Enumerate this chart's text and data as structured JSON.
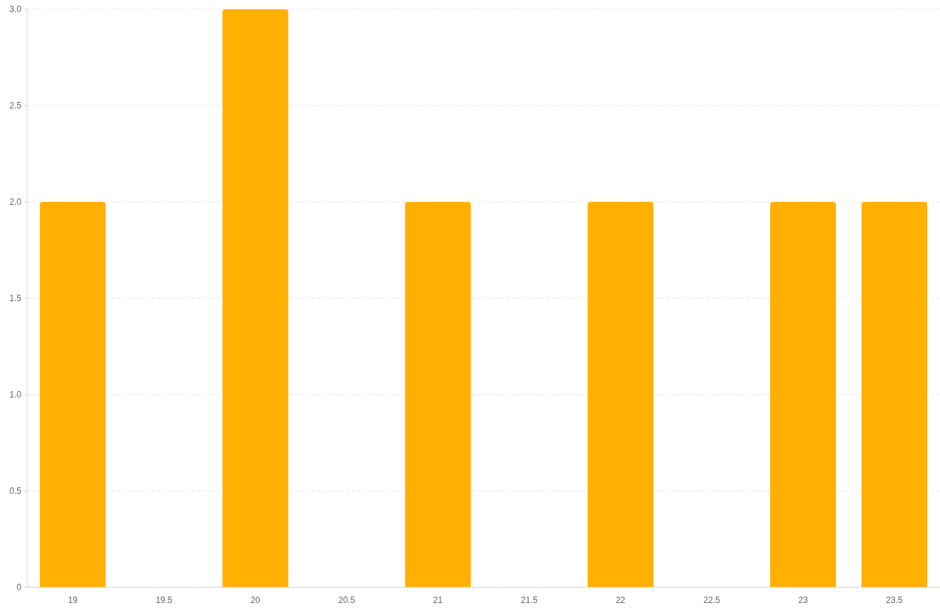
{
  "chart_data": {
    "type": "bar",
    "categories": [
      "19",
      "19.5",
      "20",
      "20.5",
      "21",
      "21.5",
      "22",
      "22.5",
      "23",
      "23.5"
    ],
    "values": [
      2,
      null,
      3,
      null,
      2,
      null,
      2,
      null,
      2,
      2
    ],
    "color": "#ffb000",
    "ylim": [
      0,
      3
    ],
    "yticks": [
      0,
      0.5,
      {
        "value": 1,
        "label": "1.0"
      },
      1.5,
      {
        "value": 2,
        "label": "2.0"
      },
      2.5,
      {
        "value": 3,
        "label": "3.0"
      }
    ],
    "grid": "y"
  }
}
